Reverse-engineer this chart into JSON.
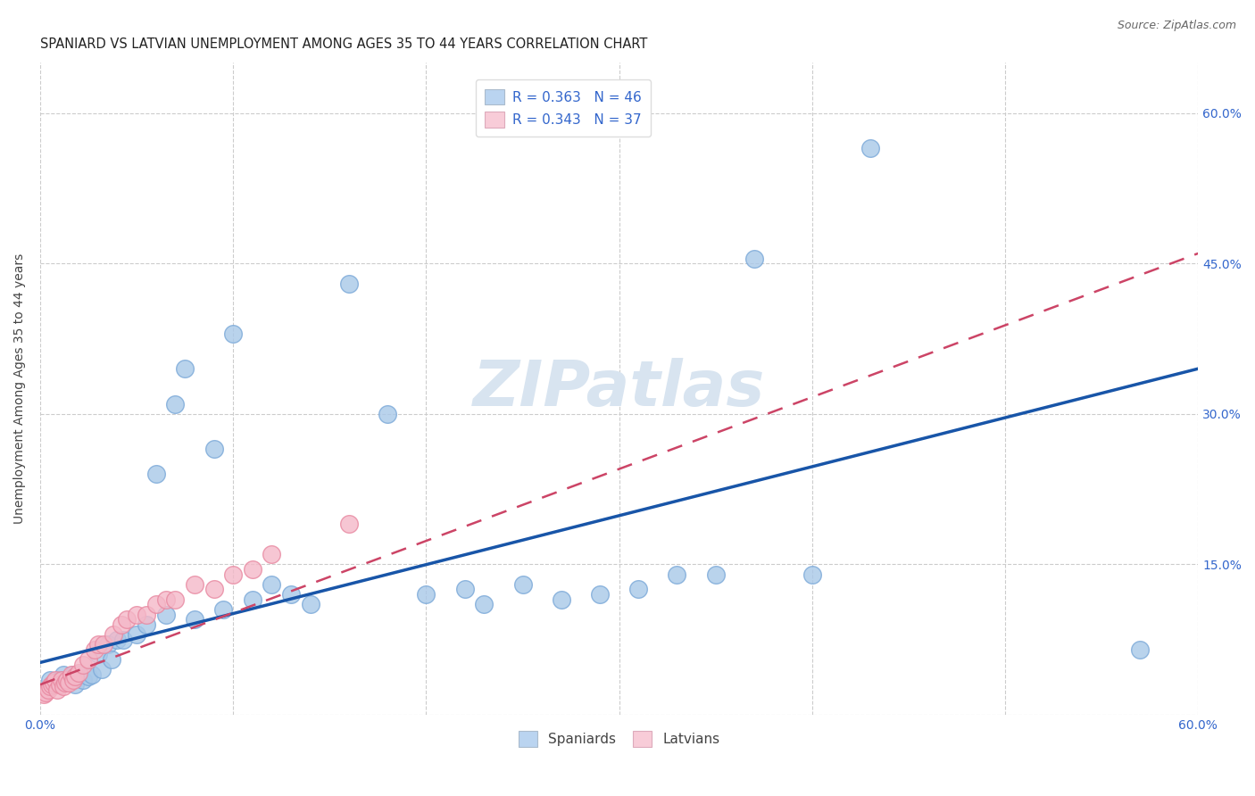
{
  "title": "SPANIARD VS LATVIAN UNEMPLOYMENT AMONG AGES 35 TO 44 YEARS CORRELATION CHART",
  "source": "Source: ZipAtlas.com",
  "ylabel": "Unemployment Among Ages 35 to 44 years",
  "xlim": [
    0.0,
    0.6
  ],
  "ylim": [
    0.0,
    0.65
  ],
  "legend_r_spaniards": "R = 0.363",
  "legend_n_spaniards": "N = 46",
  "legend_r_latvians": "R = 0.343",
  "legend_n_latvians": "N = 37",
  "watermark": "ZIPatlas",
  "spaniards_x": [
    0.005,
    0.007,
    0.01,
    0.012,
    0.015,
    0.017,
    0.018,
    0.02,
    0.022,
    0.025,
    0.027,
    0.03,
    0.032,
    0.035,
    0.037,
    0.04,
    0.043,
    0.05,
    0.055,
    0.06,
    0.065,
    0.07,
    0.075,
    0.08,
    0.09,
    0.095,
    0.1,
    0.11,
    0.12,
    0.13,
    0.14,
    0.16,
    0.18,
    0.2,
    0.22,
    0.23,
    0.25,
    0.27,
    0.29,
    0.31,
    0.33,
    0.35,
    0.37,
    0.4,
    0.43,
    0.57
  ],
  "spaniards_y": [
    0.035,
    0.03,
    0.035,
    0.04,
    0.035,
    0.04,
    0.03,
    0.04,
    0.035,
    0.038,
    0.04,
    0.06,
    0.045,
    0.07,
    0.055,
    0.075,
    0.075,
    0.08,
    0.09,
    0.24,
    0.1,
    0.31,
    0.345,
    0.095,
    0.265,
    0.105,
    0.38,
    0.115,
    0.13,
    0.12,
    0.11,
    0.43,
    0.3,
    0.12,
    0.125,
    0.11,
    0.13,
    0.115,
    0.12,
    0.125,
    0.14,
    0.14,
    0.455,
    0.14,
    0.565,
    0.065
  ],
  "latvians_x": [
    0.002,
    0.003,
    0.004,
    0.005,
    0.006,
    0.007,
    0.008,
    0.009,
    0.01,
    0.011,
    0.012,
    0.013,
    0.014,
    0.015,
    0.016,
    0.017,
    0.018,
    0.02,
    0.022,
    0.025,
    0.028,
    0.03,
    0.033,
    0.038,
    0.042,
    0.045,
    0.05,
    0.055,
    0.06,
    0.065,
    0.07,
    0.08,
    0.09,
    0.1,
    0.11,
    0.12,
    0.16
  ],
  "latvians_y": [
    0.02,
    0.022,
    0.025,
    0.028,
    0.03,
    0.032,
    0.035,
    0.025,
    0.03,
    0.035,
    0.028,
    0.032,
    0.035,
    0.032,
    0.04,
    0.035,
    0.038,
    0.042,
    0.05,
    0.055,
    0.065,
    0.07,
    0.07,
    0.08,
    0.09,
    0.095,
    0.1,
    0.1,
    0.11,
    0.115,
    0.115,
    0.13,
    0.125,
    0.14,
    0.145,
    0.16,
    0.19
  ],
  "blue_scatter_color": "#a8c8e8",
  "pink_scatter_color": "#f4b8c8",
  "blue_line_color": "#1855a8",
  "pink_line_color": "#cc4466",
  "blue_marker_edge": "#7aa8d8",
  "pink_marker_edge": "#e888a0",
  "legend_blue_fill": "#bad4f0",
  "legend_pink_fill": "#f8ccd8",
  "grid_color": "#cccccc",
  "background_color": "#ffffff",
  "title_fontsize": 10.5,
  "axis_label_fontsize": 10,
  "tick_fontsize": 10,
  "legend_fontsize": 11,
  "watermark_color": "#d8e4f0",
  "blue_trend_start_y": 0.052,
  "blue_trend_end_y": 0.345,
  "pink_trend_start_y": 0.03,
  "pink_trend_end_y": 0.46
}
